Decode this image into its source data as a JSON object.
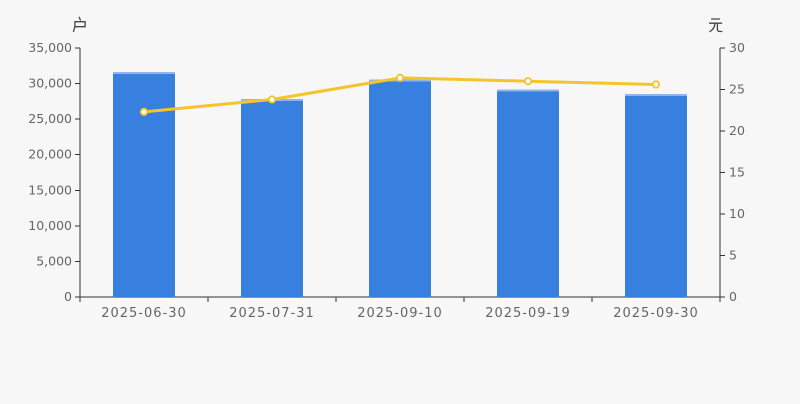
{
  "style": {
    "background": "#f7f7f7",
    "axis_line_color": "#333333",
    "tick_label_color": "#666666",
    "unit_label_color": "#444444"
  },
  "chart_data": {
    "type": "bar+line",
    "title": "",
    "categories": [
      "2025-06-30",
      "2025-07-31",
      "2025-09-10",
      "2025-09-19",
      "2025-09-30"
    ],
    "series": [
      {
        "type": "bar",
        "axis": "left",
        "color": "#3780e0",
        "cap_color": "#8fb4ea",
        "values": [
          31600,
          27800,
          30600,
          29200,
          28500
        ]
      },
      {
        "type": "line",
        "axis": "right",
        "color": "#f5c42c",
        "marker_fill": "#ffffff",
        "values": [
          22.3,
          23.8,
          26.4,
          26.0,
          25.6
        ]
      }
    ],
    "left_axis": {
      "label": "户",
      "min": 0,
      "max": 35000,
      "tick_interval": 5000,
      "tick_labels": [
        "0",
        "5,000",
        "10,000",
        "15,000",
        "20,000",
        "25,000",
        "30,000",
        "35,000"
      ]
    },
    "right_axis": {
      "label": "元",
      "min": 0,
      "max": 30,
      "tick_interval": 5,
      "tick_labels": [
        "0",
        "5",
        "10",
        "15",
        "20",
        "25",
        "30"
      ]
    },
    "grid": false,
    "legend": null
  }
}
